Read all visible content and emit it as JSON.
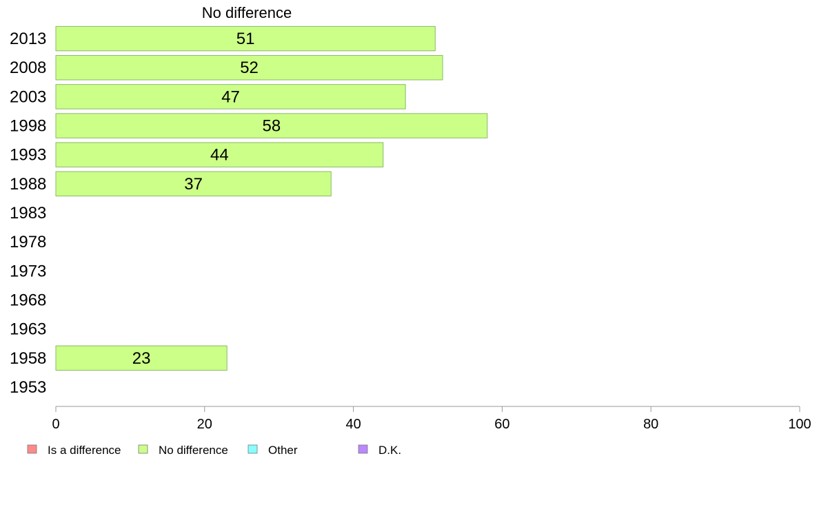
{
  "chart_data": {
    "type": "bar",
    "orientation": "horizontal",
    "title": "No difference",
    "categories": [
      "2013",
      "2008",
      "2003",
      "1998",
      "1993",
      "1988",
      "1983",
      "1978",
      "1973",
      "1968",
      "1963",
      "1958",
      "1953"
    ],
    "series": [
      {
        "name": "No difference",
        "values": [
          51,
          52,
          47,
          58,
          44,
          37,
          null,
          null,
          null,
          null,
          null,
          23,
          null
        ]
      }
    ],
    "xlim": [
      0,
      100
    ],
    "xticks": [
      0,
      20,
      40,
      60,
      80,
      100
    ],
    "grid": false,
    "legend": {
      "placement": "bottom-left",
      "entries": [
        {
          "label": "Is a difference",
          "color": "#ff8a8a"
        },
        {
          "label": "No difference",
          "color": "#ccff88"
        },
        {
          "label": "Other",
          "color": "#88ffff"
        },
        {
          "label": "D.K.",
          "color": "#bb88ff"
        }
      ]
    },
    "colors": {
      "bar_fill": "#ccff88",
      "bar_stroke": "#88b866",
      "axis": "#999999"
    }
  }
}
